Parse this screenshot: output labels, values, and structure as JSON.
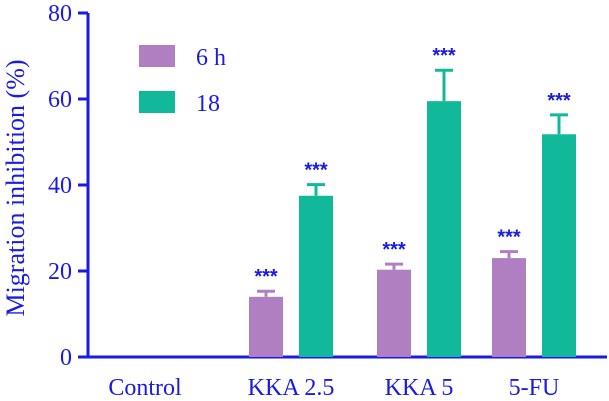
{
  "chart_data": {
    "type": "bar",
    "title": "",
    "xlabel": "",
    "ylabel": "Migration inhibition (%)",
    "ylim": [
      0,
      80
    ],
    "yticks": [
      "0",
      "20",
      "40",
      "60",
      "80"
    ],
    "categories": [
      "Control",
      "KKA 2.5",
      "KKA 5",
      "5-FU"
    ],
    "series": [
      {
        "name": "6 h",
        "color": "#b07fc1",
        "values": [
          0,
          14,
          20.3,
          23
        ],
        "errors": [
          0,
          1.3,
          1.3,
          1.5
        ],
        "significance": [
          "",
          "***",
          "***",
          "***"
        ]
      },
      {
        "name": "18",
        "color": "#12b89a",
        "values": [
          0,
          37.5,
          59.5,
          51.8
        ],
        "errors": [
          0,
          2.6,
          7.2,
          4.5
        ],
        "significance": [
          "",
          "***",
          "***",
          "***"
        ]
      }
    ],
    "legend_position": "top-left",
    "grid": false,
    "axis_color": "#1a1ae6"
  }
}
